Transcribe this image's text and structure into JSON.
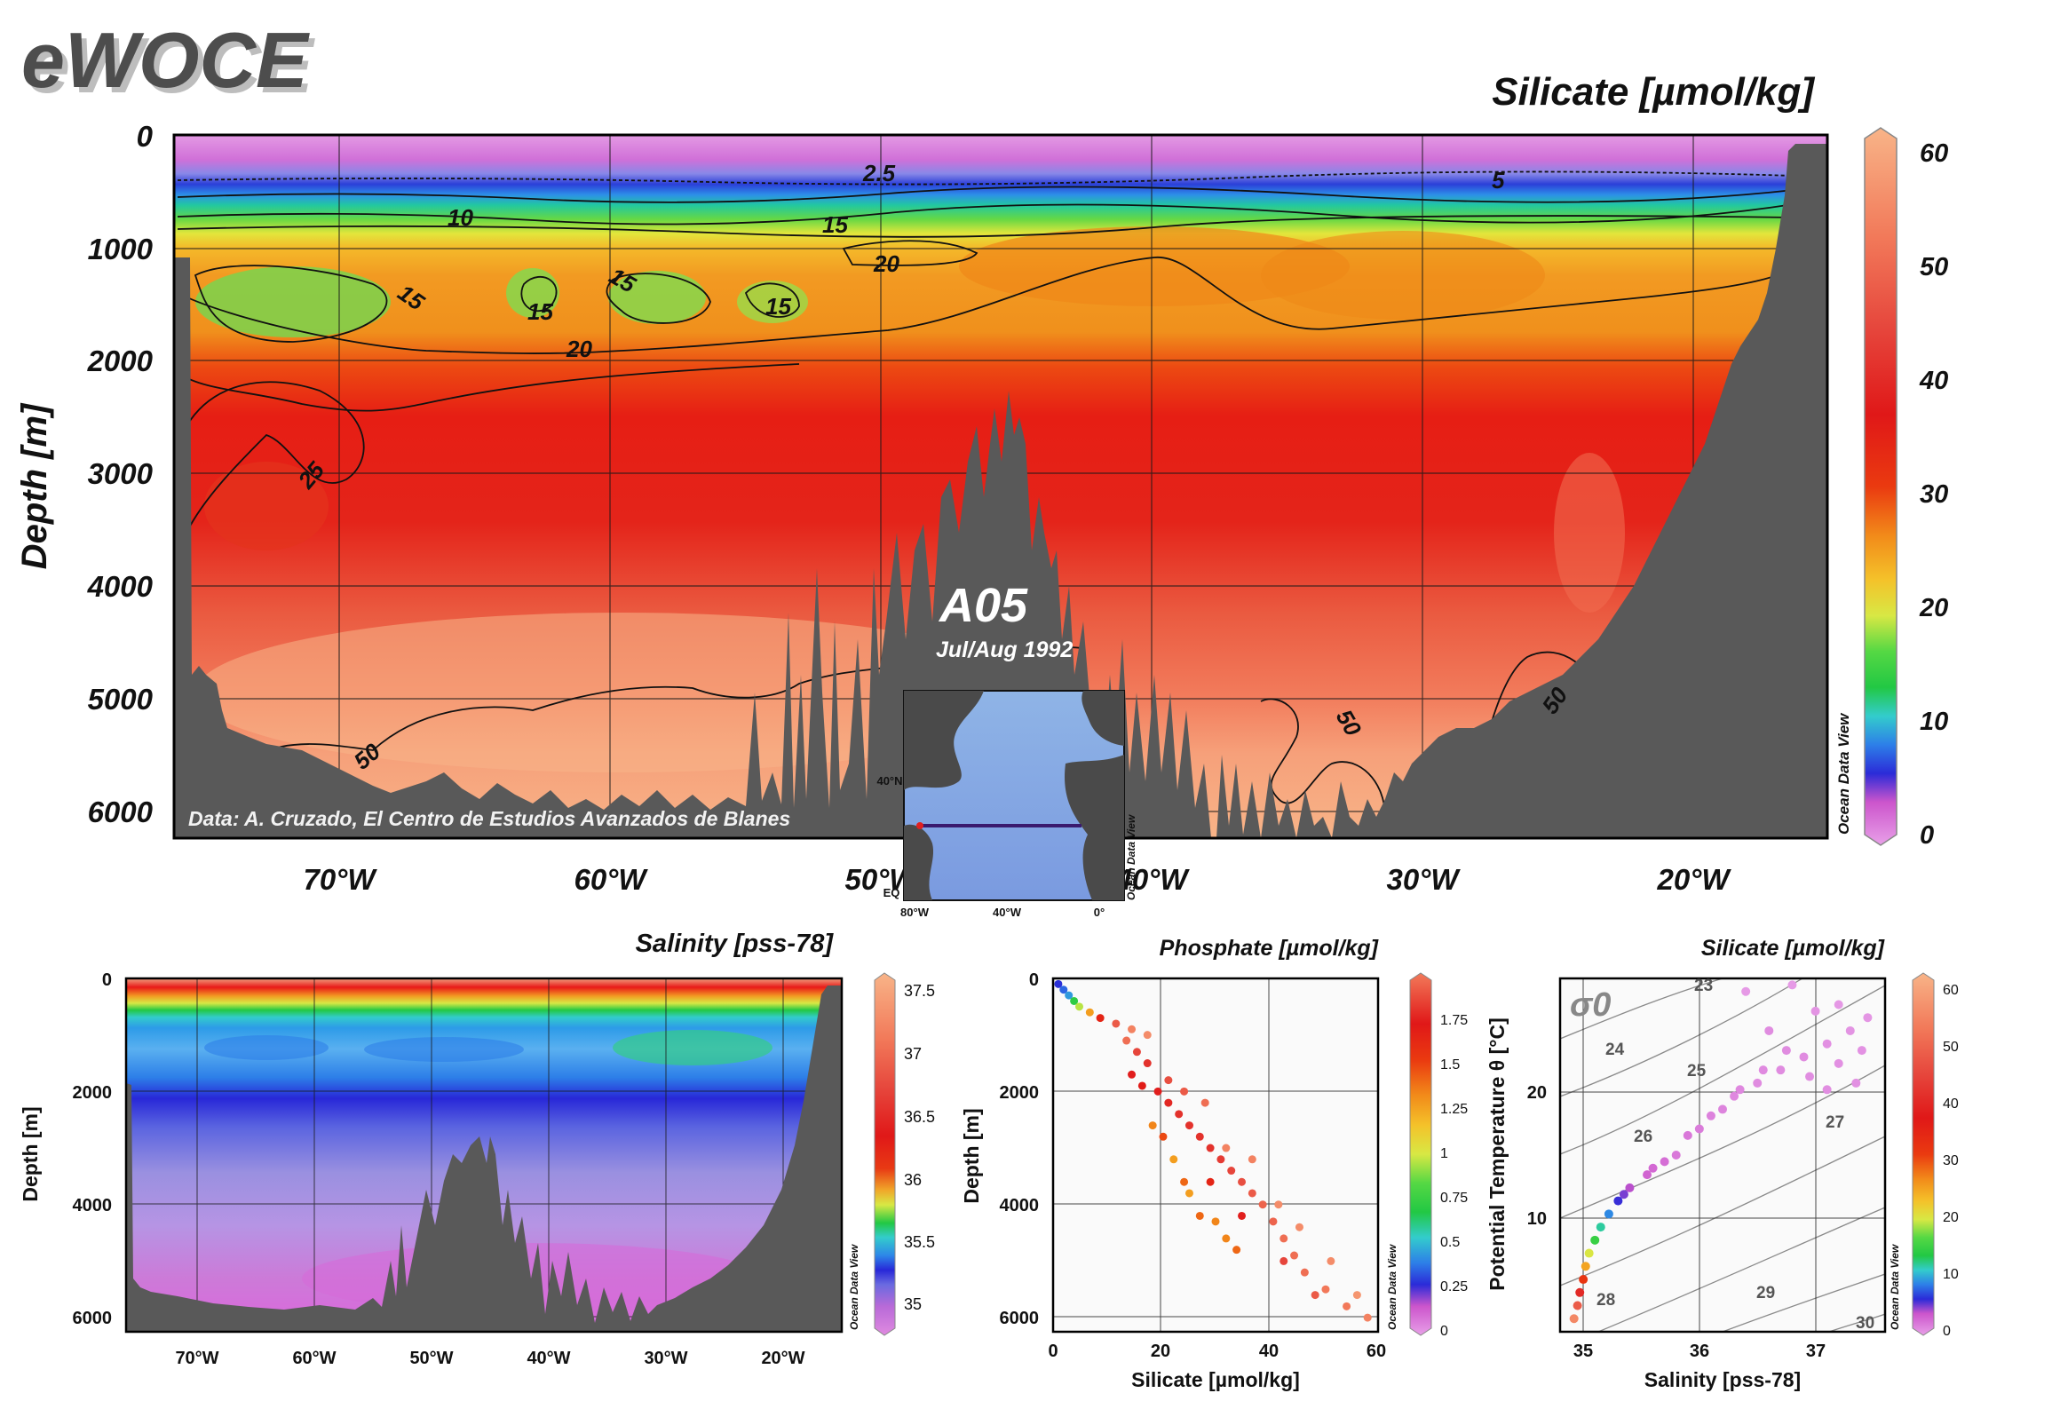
{
  "logo": "eWOCE",
  "credit": "Data: A. Cruzado, El Centro de Estudios Avanzados de Blanes",
  "section": {
    "name": "A05",
    "date": "Jul/Aug 1992"
  },
  "odv_label": "Ocean Data View",
  "colors": {
    "bathymetry": "#595959",
    "background": "#ffffff",
    "contour": "#111111"
  },
  "chart_data": [
    {
      "id": "main",
      "type": "heatmap",
      "title": "Silicate [µmol/kg]",
      "ylabel": "Depth [m]",
      "xlabel": "",
      "xlim": [
        -76,
        -15
      ],
      "ylim": [
        6250,
        0
      ],
      "y_ticks": [
        "0",
        "1000",
        "2000",
        "3000",
        "4000",
        "5000",
        "6000"
      ],
      "x_ticks": [
        "70°W",
        "60°W",
        "50°W",
        "40°W",
        "30°W",
        "20°W"
      ],
      "colorbar": {
        "range": [
          0,
          62
        ],
        "ticks": [
          "0",
          "10",
          "20",
          "30",
          "40",
          "50",
          "60"
        ]
      },
      "contour_labels": [
        "2.5",
        "5",
        "10",
        "15",
        "15",
        "15",
        "15",
        "15",
        "20",
        "20",
        "25",
        "50",
        "50",
        "50"
      ],
      "layers": [
        {
          "depth": 0,
          "value": 1
        },
        {
          "depth": 300,
          "value": 2
        },
        {
          "depth": 450,
          "value": 5
        },
        {
          "depth": 620,
          "value": 10
        },
        {
          "depth": 800,
          "value": 15
        },
        {
          "depth": 1000,
          "value": 20
        },
        {
          "depth": 1500,
          "value": 22
        },
        {
          "depth": 2000,
          "value": 27
        },
        {
          "depth": 2500,
          "value": 31
        },
        {
          "depth": 3500,
          "value": 35
        },
        {
          "depth": 4500,
          "value": 42
        },
        {
          "depth": 5200,
          "value": 50
        },
        {
          "depth": 6250,
          "value": 55
        }
      ]
    },
    {
      "id": "salinity",
      "type": "heatmap",
      "title": "Salinity [pss-78]",
      "ylabel": "Depth [m]",
      "xlim": [
        -76,
        -15
      ],
      "ylim": [
        6250,
        0
      ],
      "y_ticks": [
        "0",
        "2000",
        "4000",
        "6000"
      ],
      "x_ticks": [
        "70°W",
        "60°W",
        "50°W",
        "40°W",
        "30°W",
        "20°W"
      ],
      "colorbar": {
        "range": [
          34.85,
          37.6
        ],
        "ticks": [
          "35",
          "35.5",
          "36",
          "36.5",
          "37",
          "37.5"
        ]
      },
      "layers": [
        {
          "depth": 0,
          "value": 37.3
        },
        {
          "depth": 250,
          "value": 36.2
        },
        {
          "depth": 500,
          "value": 35.5
        },
        {
          "depth": 800,
          "value": 35.0
        },
        {
          "depth": 1400,
          "value": 34.95
        },
        {
          "depth": 2000,
          "value": 35.0
        },
        {
          "depth": 3000,
          "value": 34.95
        },
        {
          "depth": 5000,
          "value": 34.9
        },
        {
          "depth": 6250,
          "value": 34.88
        }
      ]
    },
    {
      "id": "profile",
      "type": "scatter",
      "title": "Phosphate [µmol/kg]",
      "xlabel": "Silicate [µmol/kg]",
      "ylabel": "Depth [m]",
      "xlim": [
        0,
        62
      ],
      "ylim": [
        6250,
        0
      ],
      "x_ticks": [
        "0",
        "20",
        "40",
        "60"
      ],
      "y_ticks": [
        "0",
        "2000",
        "4000",
        "6000"
      ],
      "colorbar": {
        "range": [
          0,
          1.95
        ],
        "ticks": [
          "0",
          "0.25",
          "0.5",
          "0.75",
          "1",
          "1.25",
          "1.5",
          "1.75"
        ]
      },
      "points": [
        [
          1,
          100,
          0.2
        ],
        [
          2,
          200,
          0.25
        ],
        [
          3,
          300,
          0.3
        ],
        [
          4,
          400,
          0.45
        ],
        [
          5,
          500,
          0.6
        ],
        [
          7,
          600,
          0.8
        ],
        [
          9,
          700,
          1.1
        ],
        [
          12,
          800,
          1.5
        ],
        [
          15,
          900,
          1.7
        ],
        [
          18,
          1000,
          1.75
        ],
        [
          14,
          1100,
          1.6
        ],
        [
          16,
          1300,
          1.4
        ],
        [
          18,
          1500,
          1.3
        ],
        [
          15,
          1700,
          1.2
        ],
        [
          17,
          1900,
          1.15
        ],
        [
          20,
          2000,
          1.2
        ],
        [
          22,
          2200,
          1.25
        ],
        [
          24,
          2400,
          1.3
        ],
        [
          26,
          2600,
          1.3
        ],
        [
          28,
          2800,
          1.3
        ],
        [
          30,
          3000,
          1.3
        ],
        [
          32,
          3200,
          1.35
        ],
        [
          34,
          3400,
          1.4
        ],
        [
          36,
          3600,
          1.45
        ],
        [
          38,
          3800,
          1.5
        ],
        [
          40,
          4000,
          1.55
        ],
        [
          42,
          4300,
          1.55
        ],
        [
          44,
          4600,
          1.6
        ],
        [
          46,
          4900,
          1.6
        ],
        [
          48,
          5200,
          1.6
        ],
        [
          52,
          5500,
          1.65
        ],
        [
          56,
          5800,
          1.65
        ],
        [
          60,
          6000,
          1.7
        ],
        [
          25,
          3600,
          0.9
        ],
        [
          28,
          4200,
          0.9
        ],
        [
          33,
          4600,
          0.85
        ],
        [
          21,
          2800,
          0.95
        ],
        [
          30,
          3600,
          1.1
        ],
        [
          36,
          4200,
          1.2
        ],
        [
          44,
          5000,
          1.4
        ],
        [
          50,
          5600,
          1.5
        ],
        [
          22,
          1800,
          1.45
        ],
        [
          25,
          2000,
          1.5
        ],
        [
          29,
          2200,
          1.6
        ],
        [
          33,
          3000,
          1.7
        ],
        [
          38,
          3200,
          1.7
        ],
        [
          43,
          4000,
          1.75
        ],
        [
          47,
          4400,
          1.75
        ],
        [
          53,
          5000,
          1.75
        ],
        [
          58,
          5600,
          1.8
        ],
        [
          19,
          2600,
          0.85
        ],
        [
          23,
          3200,
          0.8
        ],
        [
          26,
          3800,
          0.8
        ],
        [
          31,
          4300,
          0.85
        ],
        [
          35,
          4800,
          0.9
        ]
      ]
    },
    {
      "id": "ts",
      "type": "scatter",
      "title": "Silicate [µmol/kg]",
      "xlabel": "Salinity [pss-78]",
      "ylabel": "Potential Temperature θ [°C]",
      "xlim": [
        34.8,
        37.6
      ],
      "ylim": [
        1,
        28
      ],
      "x_ticks": [
        "35",
        "36",
        "37"
      ],
      "y_ticks": [
        "10",
        "20"
      ],
      "colorbar": {
        "range": [
          0,
          62
        ],
        "ticks": [
          "0",
          "10",
          "20",
          "30",
          "40",
          "50",
          "60"
        ]
      },
      "sigma_symbol": "σ0",
      "sigma_labels": [
        "23",
        "24",
        "25",
        "26",
        "27",
        "28",
        "29",
        "30"
      ],
      "points": [
        [
          34.92,
          2,
          55
        ],
        [
          34.95,
          3,
          48
        ],
        [
          34.97,
          4,
          40
        ],
        [
          35.0,
          5,
          32
        ],
        [
          35.02,
          6,
          25
        ],
        [
          35.05,
          7,
          20
        ],
        [
          35.1,
          8,
          15
        ],
        [
          35.15,
          9,
          12
        ],
        [
          35.22,
          10,
          9
        ],
        [
          35.3,
          11,
          6
        ],
        [
          35.4,
          12,
          4
        ],
        [
          35.55,
          13,
          3
        ],
        [
          35.7,
          14,
          2.5
        ],
        [
          35.9,
          16,
          2
        ],
        [
          36.1,
          17.5,
          1.5
        ],
        [
          36.3,
          19,
          1.2
        ],
        [
          36.5,
          20,
          1
        ],
        [
          36.7,
          21,
          1
        ],
        [
          36.9,
          22,
          1
        ],
        [
          37.1,
          23,
          0.8
        ],
        [
          37.3,
          24,
          0.6
        ],
        [
          37.45,
          25,
          0.5
        ],
        [
          36.4,
          27,
          0.3
        ],
        [
          36.8,
          27.5,
          0.3
        ],
        [
          37.2,
          26,
          0.4
        ],
        [
          36.6,
          24,
          1
        ],
        [
          37.0,
          25.5,
          0.6
        ],
        [
          35.8,
          14.5,
          2
        ],
        [
          36.0,
          16.5,
          1.8
        ],
        [
          36.2,
          18,
          1.4
        ],
        [
          36.35,
          19.5,
          1.2
        ],
        [
          36.55,
          21,
          1.1
        ],
        [
          36.75,
          22.5,
          1
        ],
        [
          35.35,
          11.5,
          5
        ],
        [
          35.6,
          13.5,
          2.8
        ],
        [
          37.35,
          20,
          0.8
        ],
        [
          37.1,
          19.5,
          0.9
        ],
        [
          36.95,
          20.5,
          0.9
        ],
        [
          37.2,
          21.5,
          0.8
        ],
        [
          37.4,
          22.5,
          0.7
        ]
      ]
    }
  ],
  "inset_map": {
    "ticks_x": [
      "80°W",
      "40°W",
      "0°"
    ],
    "ticks_y": [
      "40°N",
      "EQ"
    ]
  }
}
